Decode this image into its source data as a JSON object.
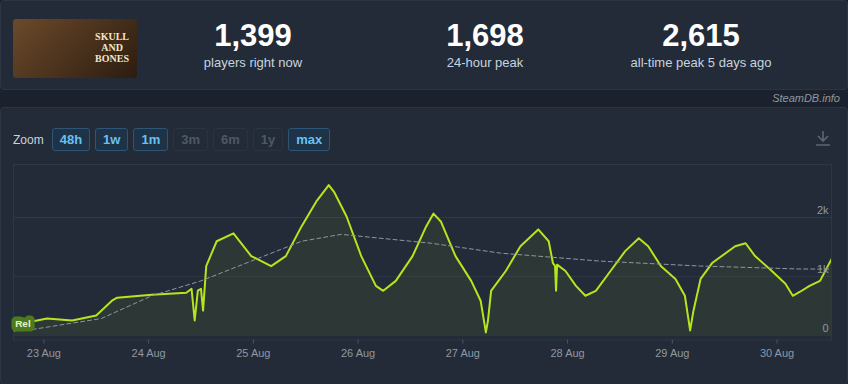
{
  "header": {
    "thumbnail": [
      "SKULL",
      "AND",
      "BONES"
    ],
    "stats": [
      {
        "value": "1,399",
        "label": "players right now"
      },
      {
        "value": "1,698",
        "label": "24-hour peak"
      },
      {
        "value": "2,615",
        "label": "all-time peak 5 days ago"
      }
    ],
    "credit": "SteamDB.info"
  },
  "zoom": {
    "label": "Zoom",
    "buttons": [
      {
        "text": "48h",
        "active": true
      },
      {
        "text": "1w",
        "active": true
      },
      {
        "text": "1m",
        "active": true
      },
      {
        "text": "3m",
        "active": false
      },
      {
        "text": "6m",
        "active": false
      },
      {
        "text": "1y",
        "active": false
      },
      {
        "text": "max",
        "active": true
      }
    ]
  },
  "chart_data": {
    "type": "line",
    "xlim": [
      -0.29,
      7.52
    ],
    "xticks": [
      {
        "value": 0,
        "label": "23 Aug"
      },
      {
        "value": 1,
        "label": "24 Aug"
      },
      {
        "value": 2,
        "label": "25 Aug"
      },
      {
        "value": 3,
        "label": "26 Aug"
      },
      {
        "value": 4,
        "label": "27 Aug"
      },
      {
        "value": 5,
        "label": "28 Aug"
      },
      {
        "value": 6,
        "label": "29 Aug"
      },
      {
        "value": 7,
        "label": "30 Aug"
      }
    ],
    "ylim": [
      -80,
      2900
    ],
    "yticks": [
      0,
      {
        "value": 1000,
        "label": "1k"
      },
      {
        "value": 2000,
        "label": "2k"
      }
    ],
    "grid": true,
    "series": [
      {
        "color": "#b5e61d",
        "line_style": "solid",
        "x": [
          -0.28,
          -0.16,
          0.03,
          0.27,
          0.5,
          0.65,
          0.7,
          1.03,
          1.36,
          1.41,
          1.44,
          1.47,
          1.5,
          1.52,
          1.55,
          1.65,
          1.81,
          1.98,
          2.17,
          2.31,
          2.46,
          2.6,
          2.72,
          2.77,
          2.89,
          3.03,
          3.17,
          3.24,
          3.36,
          3.52,
          3.65,
          3.72,
          3.79,
          3.93,
          4.08,
          4.17,
          4.22,
          4.24,
          4.27,
          4.41,
          4.55,
          4.72,
          4.82,
          4.86,
          4.88,
          4.89,
          4.9,
          4.98,
          5.08,
          5.17,
          5.27,
          5.41,
          5.55,
          5.68,
          5.77,
          5.89,
          6.03,
          6.12,
          6.17,
          6.2,
          6.27,
          6.38,
          6.6,
          6.7,
          6.79,
          6.93,
          7.08,
          7.15,
          7.22,
          7.31,
          7.41,
          7.52
        ],
        "values": [
          84,
          218,
          286,
          252,
          336,
          588,
          640,
          690,
          723,
          790,
          252,
          760,
          790,
          420,
          1176,
          1597,
          1731,
          1345,
          1176,
          1345,
          1849,
          2269,
          2550,
          2437,
          2017,
          1345,
          840,
          756,
          924,
          1345,
          1849,
          2067,
          1933,
          1345,
          924,
          588,
          50,
          250,
          756,
          1092,
          1513,
          1798,
          1597,
          1227,
          1180,
          756,
          1200,
          1092,
          840,
          672,
          756,
          1092,
          1429,
          1647,
          1513,
          1176,
          958,
          672,
          84,
          400,
          958,
          1227,
          1513,
          1563,
          1345,
          1126,
          874,
          672,
          740,
          840,
          924,
          1294
        ]
      },
      {
        "color": "#8f98a0",
        "line_style": "dashed",
        "x": [
          -0.11,
          0.55,
          1.03,
          1.5,
          1.98,
          2.46,
          2.84,
          3.22,
          3.7,
          4.36,
          5.31,
          6.27,
          7.22,
          7.52
        ],
        "values": [
          100,
          286,
          672,
          924,
          1260,
          1597,
          1714,
          1647,
          1563,
          1395,
          1260,
          1176,
          1126,
          1126
        ]
      }
    ],
    "annotations": [
      {
        "text": "Rel",
        "x": -0.2,
        "y": 200
      }
    ]
  }
}
